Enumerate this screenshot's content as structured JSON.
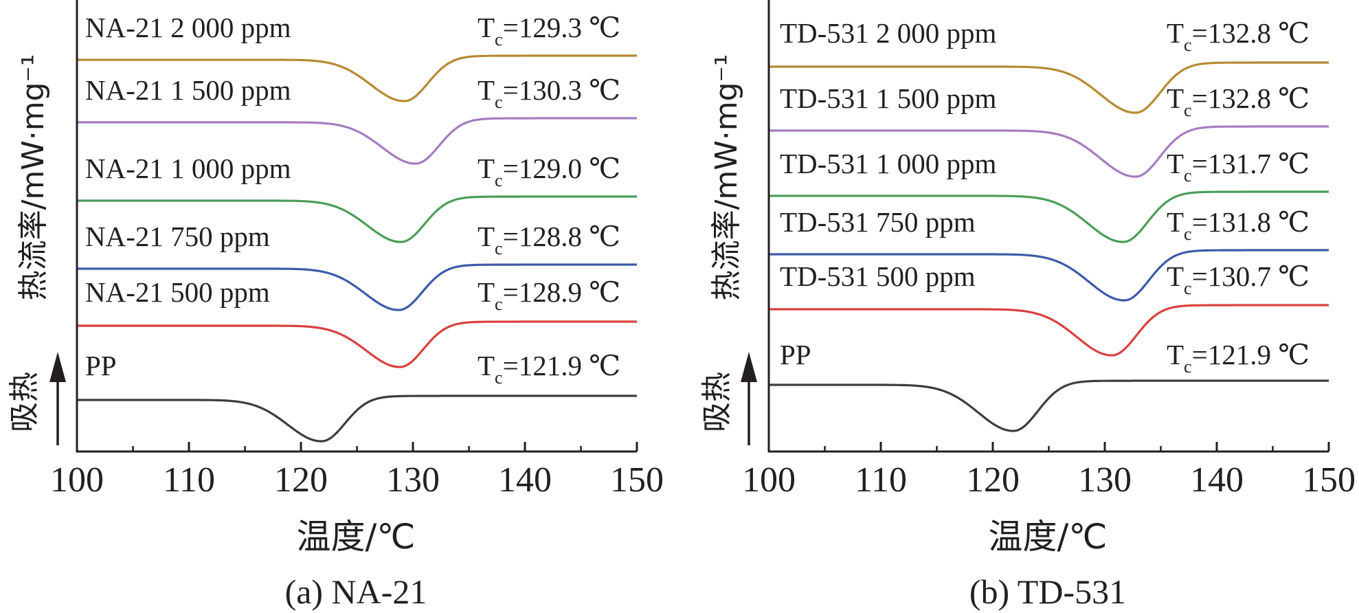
{
  "chart_data": [
    {
      "type": "line",
      "caption": "(a) NA-21",
      "xlabel": "温度/℃",
      "ylabel": "热流率/mW·mg⁻¹",
      "endo_label": "吸热",
      "xlim": [
        100,
        150
      ],
      "xticks": [
        "100",
        "110",
        "120",
        "130",
        "140",
        "150"
      ],
      "series": [
        {
          "name": "PP",
          "color": "#3d3d3d",
          "tc": 121.9,
          "tc_label": "=121.9 ℃"
        },
        {
          "name": "NA-21 500 ppm",
          "color": "#d9413e",
          "tc": 128.9,
          "tc_label": "=128.9 ℃"
        },
        {
          "name": "NA-21 750 ppm",
          "color": "#3d5aa8",
          "tc": 128.8,
          "tc_label": "=128.8 ℃"
        },
        {
          "name": "NA-21 1 000 ppm",
          "color": "#4a9d58",
          "tc": 129.0,
          "tc_label": "=129.0 ℃"
        },
        {
          "name": "NA-21 1 500 ppm",
          "color": "#a57cc0",
          "tc": 130.3,
          "tc_label": "=130.3 ℃"
        },
        {
          "name": "NA-21 2 000 ppm",
          "color": "#b58a33",
          "tc": 129.3,
          "tc_label": "=129.3 ℃"
        }
      ]
    },
    {
      "type": "line",
      "caption": "(b) TD-531",
      "xlabel": "温度/℃",
      "ylabel": "热流率/mW·mg⁻¹",
      "endo_label": "吸热",
      "xlim": [
        100,
        150
      ],
      "xticks": [
        "100",
        "110",
        "120",
        "130",
        "140",
        "150"
      ],
      "series": [
        {
          "name": "PP",
          "color": "#3d3d3d",
          "tc": 121.9,
          "tc_label": "=121.9 ℃"
        },
        {
          "name": "TD-531 500 ppm",
          "color": "#d9413e",
          "tc": 130.7,
          "tc_label": "=130.7 ℃"
        },
        {
          "name": "TD-531 750 ppm",
          "color": "#3d5aa8",
          "tc": 131.8,
          "tc_label": "=131.8 ℃"
        },
        {
          "name": "TD-531 1 000 ppm",
          "color": "#4a9d58",
          "tc": 131.7,
          "tc_label": "=131.7 ℃"
        },
        {
          "name": "TD-531 1 500 ppm",
          "color": "#a57cc0",
          "tc": 132.8,
          "tc_label": "=132.8 ℃"
        },
        {
          "name": "TD-531 2 000 ppm",
          "color": "#b58a33",
          "tc": 132.8,
          "tc_label": "=132.8 ℃"
        }
      ]
    }
  ]
}
